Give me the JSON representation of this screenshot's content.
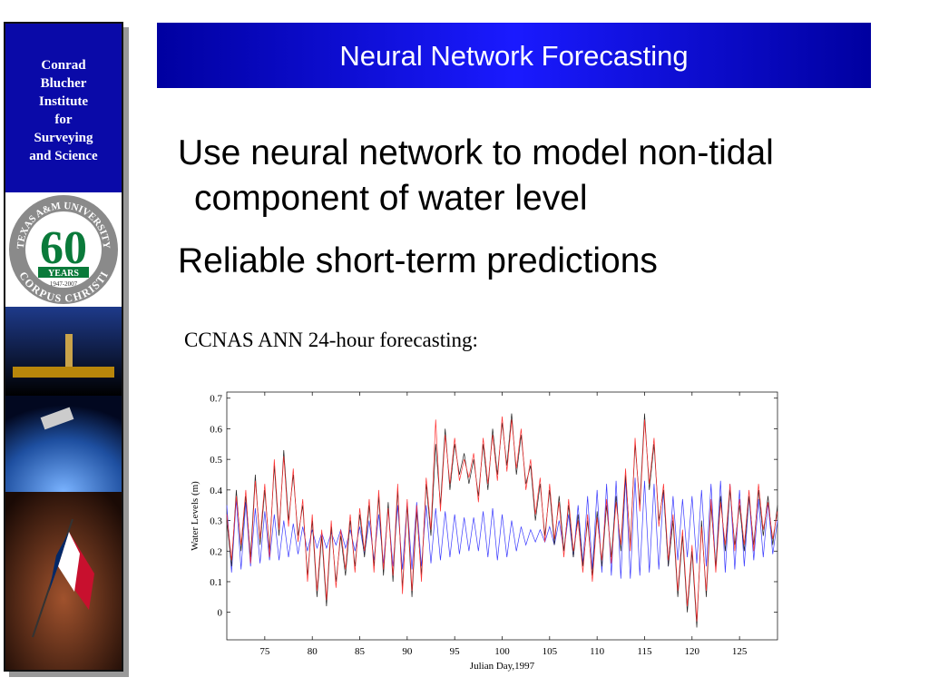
{
  "sidebar": {
    "name_lines": [
      "Conrad",
      "Blucher",
      "Institute",
      "for",
      "Surveying",
      "and Science"
    ],
    "logo": {
      "ring_top": "TEXAS A&M UNIVERSITY",
      "number": "60",
      "years": "YEARS",
      "dates": "1947-2007",
      "ring_bottom": "CORPUS CHRISTI"
    }
  },
  "title": "Neural Network Forecasting",
  "bullets": [
    "Use neural network to model non-tidal component of water level",
    "Reliable short-term predictions"
  ],
  "caption": "CCNAS ANN 24-hour forecasting:",
  "chart_data": {
    "type": "line",
    "xlabel": "Julian Day,1997",
    "ylabel": "Water Levels (m)",
    "xlim": [
      71,
      129
    ],
    "ylim": [
      -0.09,
      0.72
    ],
    "xticks": [
      75,
      80,
      85,
      90,
      95,
      100,
      105,
      110,
      115,
      120,
      125
    ],
    "yticks": [
      0,
      0.1,
      0.2,
      0.3,
      0.4,
      0.5,
      0.6,
      0.7
    ],
    "x": [
      71,
      71.5,
      72,
      72.5,
      73,
      73.5,
      74,
      74.5,
      75,
      75.5,
      76,
      76.5,
      77,
      77.5,
      78,
      78.5,
      79,
      79.5,
      80,
      80.5,
      81,
      81.5,
      82,
      82.5,
      83,
      83.5,
      84,
      84.5,
      85,
      85.5,
      86,
      86.5,
      87,
      87.5,
      88,
      88.5,
      89,
      89.5,
      90,
      90.5,
      91,
      91.5,
      92,
      92.5,
      93,
      93.5,
      94,
      94.5,
      95,
      95.5,
      96,
      96.5,
      97,
      97.5,
      98,
      98.5,
      99,
      99.5,
      100,
      100.5,
      101,
      101.5,
      102,
      102.5,
      103,
      103.5,
      104,
      104.5,
      105,
      105.5,
      106,
      106.5,
      107,
      107.5,
      108,
      108.5,
      109,
      109.5,
      110,
      110.5,
      111,
      111.5,
      112,
      112.5,
      113,
      113.5,
      114,
      114.5,
      115,
      115.5,
      116,
      116.5,
      117,
      117.5,
      118,
      118.5,
      119,
      119.5,
      120,
      120.5,
      121,
      121.5,
      122,
      122.5,
      123,
      123.5,
      124,
      124.5,
      125,
      125.5,
      126,
      126.5,
      127,
      127.5,
      128,
      128.5,
      129
    ],
    "series": [
      {
        "color": "#3a3aff",
        "values": [
          0.35,
          0.13,
          0.37,
          0.14,
          0.36,
          0.15,
          0.34,
          0.16,
          0.33,
          0.17,
          0.32,
          0.17,
          0.3,
          0.18,
          0.29,
          0.19,
          0.28,
          0.2,
          0.27,
          0.21,
          0.26,
          0.21,
          0.26,
          0.22,
          0.27,
          0.21,
          0.27,
          0.2,
          0.28,
          0.19,
          0.3,
          0.17,
          0.32,
          0.16,
          0.34,
          0.15,
          0.35,
          0.14,
          0.36,
          0.14,
          0.36,
          0.15,
          0.35,
          0.16,
          0.34,
          0.17,
          0.33,
          0.18,
          0.32,
          0.19,
          0.31,
          0.2,
          0.31,
          0.2,
          0.33,
          0.18,
          0.34,
          0.17,
          0.32,
          0.18,
          0.3,
          0.2,
          0.28,
          0.22,
          0.27,
          0.23,
          0.27,
          0.23,
          0.28,
          0.22,
          0.3,
          0.2,
          0.32,
          0.18,
          0.35,
          0.16,
          0.38,
          0.14,
          0.4,
          0.13,
          0.42,
          0.12,
          0.43,
          0.11,
          0.44,
          0.11,
          0.44,
          0.12,
          0.43,
          0.13,
          0.42,
          0.14,
          0.4,
          0.15,
          0.38,
          0.17,
          0.37,
          0.18,
          0.38,
          0.16,
          0.4,
          0.15,
          0.42,
          0.14,
          0.43,
          0.13,
          0.42,
          0.14,
          0.4,
          0.15,
          0.38,
          0.17,
          0.37,
          0.18,
          0.36,
          0.19,
          0.3
        ]
      },
      {
        "color": "#222222",
        "values": [
          0.3,
          0.15,
          0.4,
          0.2,
          0.38,
          0.18,
          0.45,
          0.22,
          0.4,
          0.2,
          0.48,
          0.25,
          0.53,
          0.3,
          0.45,
          0.25,
          0.35,
          0.12,
          0.3,
          0.05,
          0.25,
          0.02,
          0.28,
          0.1,
          0.25,
          0.12,
          0.3,
          0.15,
          0.32,
          0.18,
          0.35,
          0.15,
          0.38,
          0.12,
          0.36,
          0.1,
          0.4,
          0.08,
          0.35,
          0.05,
          0.33,
          0.12,
          0.42,
          0.25,
          0.55,
          0.35,
          0.6,
          0.4,
          0.55,
          0.45,
          0.52,
          0.42,
          0.5,
          0.38,
          0.55,
          0.4,
          0.6,
          0.45,
          0.62,
          0.48,
          0.65,
          0.45,
          0.58,
          0.42,
          0.48,
          0.3,
          0.42,
          0.25,
          0.4,
          0.22,
          0.38,
          0.2,
          0.35,
          0.18,
          0.32,
          0.15,
          0.3,
          0.12,
          0.33,
          0.15,
          0.35,
          0.18,
          0.38,
          0.2,
          0.45,
          0.22,
          0.55,
          0.35,
          0.65,
          0.4,
          0.55,
          0.3,
          0.4,
          0.15,
          0.3,
          0.05,
          0.25,
          0.0,
          0.2,
          -0.05,
          0.3,
          0.05,
          0.35,
          0.15,
          0.38,
          0.2,
          0.4,
          0.22,
          0.35,
          0.2,
          0.38,
          0.22,
          0.4,
          0.25,
          0.38,
          0.22,
          0.35
        ]
      },
      {
        "color": "#ff3030",
        "values": [
          0.32,
          0.17,
          0.38,
          0.22,
          0.4,
          0.16,
          0.43,
          0.24,
          0.42,
          0.18,
          0.5,
          0.27,
          0.51,
          0.28,
          0.47,
          0.23,
          0.37,
          0.1,
          0.32,
          0.07,
          0.27,
          0.04,
          0.3,
          0.08,
          0.27,
          0.14,
          0.32,
          0.13,
          0.34,
          0.2,
          0.37,
          0.13,
          0.4,
          0.14,
          0.34,
          0.12,
          0.42,
          0.06,
          0.37,
          0.07,
          0.35,
          0.1,
          0.44,
          0.27,
          0.63,
          0.33,
          0.58,
          0.42,
          0.57,
          0.43,
          0.5,
          0.44,
          0.52,
          0.36,
          0.57,
          0.42,
          0.58,
          0.43,
          0.64,
          0.46,
          0.63,
          0.47,
          0.6,
          0.4,
          0.5,
          0.32,
          0.44,
          0.23,
          0.42,
          0.24,
          0.36,
          0.18,
          0.37,
          0.2,
          0.3,
          0.13,
          0.32,
          0.1,
          0.31,
          0.17,
          0.37,
          0.16,
          0.36,
          0.22,
          0.47,
          0.2,
          0.57,
          0.33,
          0.63,
          0.42,
          0.57,
          0.28,
          0.42,
          0.17,
          0.32,
          0.07,
          0.27,
          0.02,
          0.22,
          -0.03,
          0.28,
          0.07,
          0.37,
          0.13,
          0.36,
          0.22,
          0.42,
          0.2,
          0.37,
          0.22,
          0.4,
          0.2,
          0.42,
          0.27,
          0.36,
          0.24,
          0.33
        ]
      }
    ]
  }
}
